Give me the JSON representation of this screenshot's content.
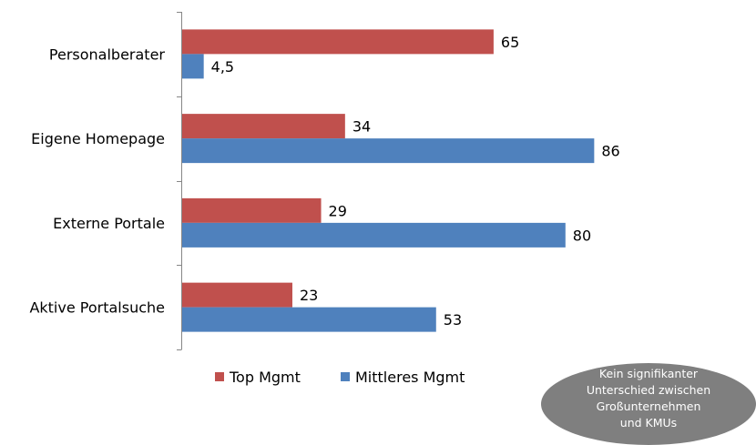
{
  "chart_data": {
    "type": "bar",
    "orientation": "horizontal",
    "categories": [
      "Personalberater",
      "Eigene Homepage",
      "Externe Portale",
      "Aktive Portalsuche"
    ],
    "series": [
      {
        "name": "Top Mgmt",
        "color": "#c0504d",
        "values": [
          65,
          34,
          29,
          23
        ],
        "labels": [
          "65",
          "34",
          "29",
          "23"
        ]
      },
      {
        "name": "Mittleres Mgmt",
        "color": "#4f81bd",
        "values": [
          4.5,
          86,
          80,
          53
        ],
        "labels": [
          "4,5",
          "86",
          "80",
          "53"
        ]
      }
    ],
    "xlim": [
      0,
      100
    ],
    "grid": false,
    "legend_position": "bottom"
  },
  "note": {
    "lines": [
      "Kein signifikanter",
      "Unterschied zwischen",
      "Großunternehmen",
      "und KMUs"
    ]
  }
}
